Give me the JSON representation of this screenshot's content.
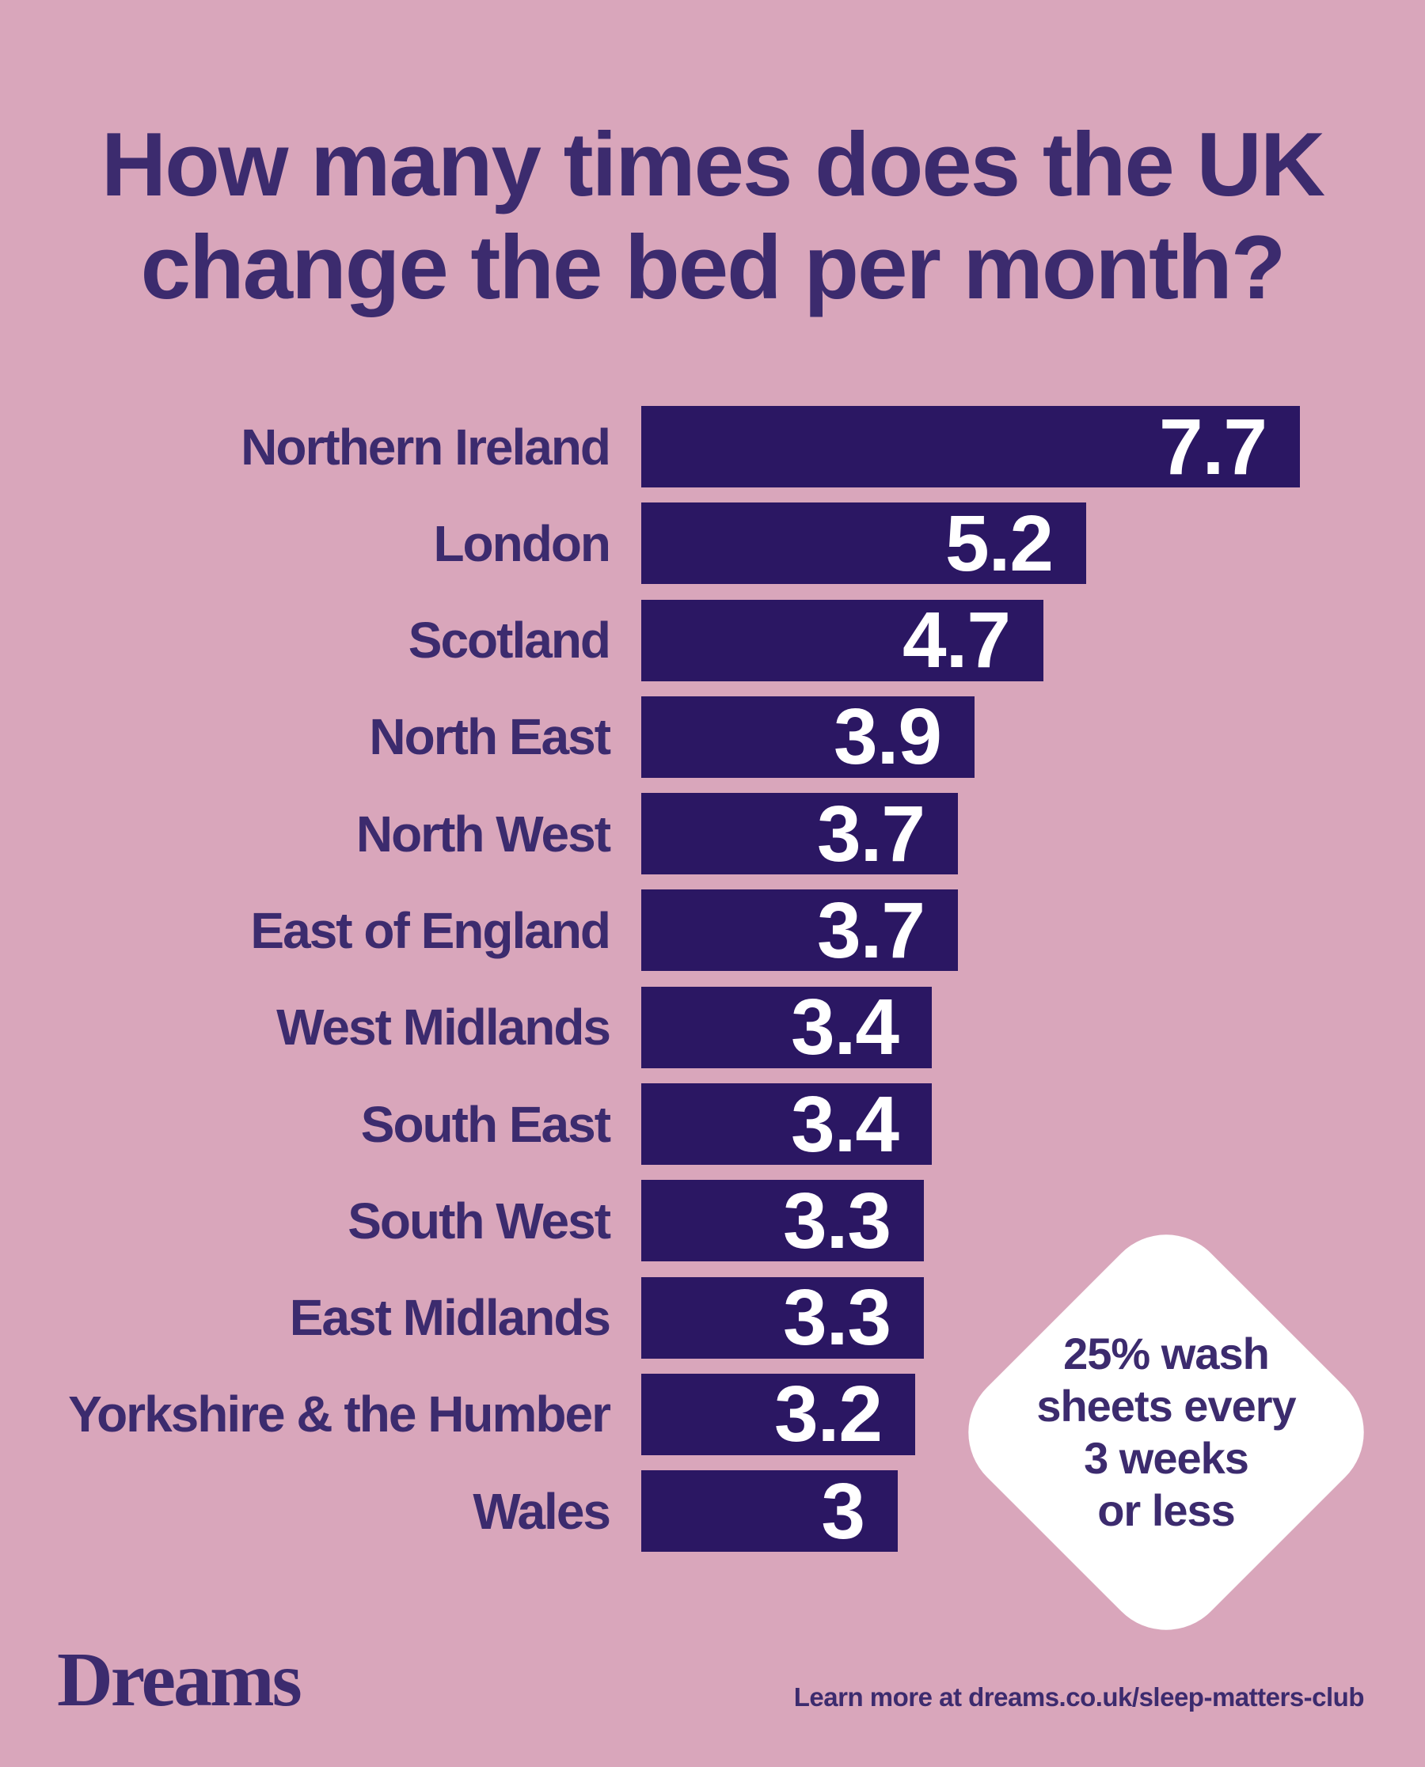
{
  "title": {
    "line1": "How many times does the UK",
    "line2": "change the bed per month?"
  },
  "chart_data": {
    "type": "bar",
    "orientation": "horizontal",
    "title": "How many times does the UK change the bed per month?",
    "categories": [
      "Northern Ireland",
      "London",
      "Scotland",
      "North East",
      "North West",
      "East of England",
      "West Midlands",
      "South East",
      "South West",
      "East Midlands",
      "Yorkshire & the Humber",
      "Wales"
    ],
    "values": [
      7.7,
      5.2,
      4.7,
      3.9,
      3.7,
      3.7,
      3.4,
      3.4,
      3.3,
      3.3,
      3.2,
      3
    ],
    "value_labels": [
      "7.7",
      "5.2",
      "4.7",
      "3.9",
      "3.7",
      "3.7",
      "3.4",
      "3.4",
      "3.3",
      "3.3",
      "3.2",
      "3"
    ],
    "xlim": [
      0,
      7.7
    ],
    "grid": false,
    "legend": false,
    "bar_color": "#2b1763",
    "value_label_color": "#ffffff",
    "category_label_color": "#3c2b6e"
  },
  "badge": {
    "lines": [
      "25% wash",
      "sheets every",
      "3 weeks",
      "or less"
    ],
    "background": "#ffffff",
    "text_color": "#3c2b6e"
  },
  "footer": {
    "logo": "Dreams",
    "link": "Learn more at dreams.co.uk/sleep-matters-club"
  },
  "colors": {
    "background": "#d9a6bb",
    "bar": "#2b1763",
    "ink": "#3c2b6e",
    "white": "#ffffff"
  }
}
